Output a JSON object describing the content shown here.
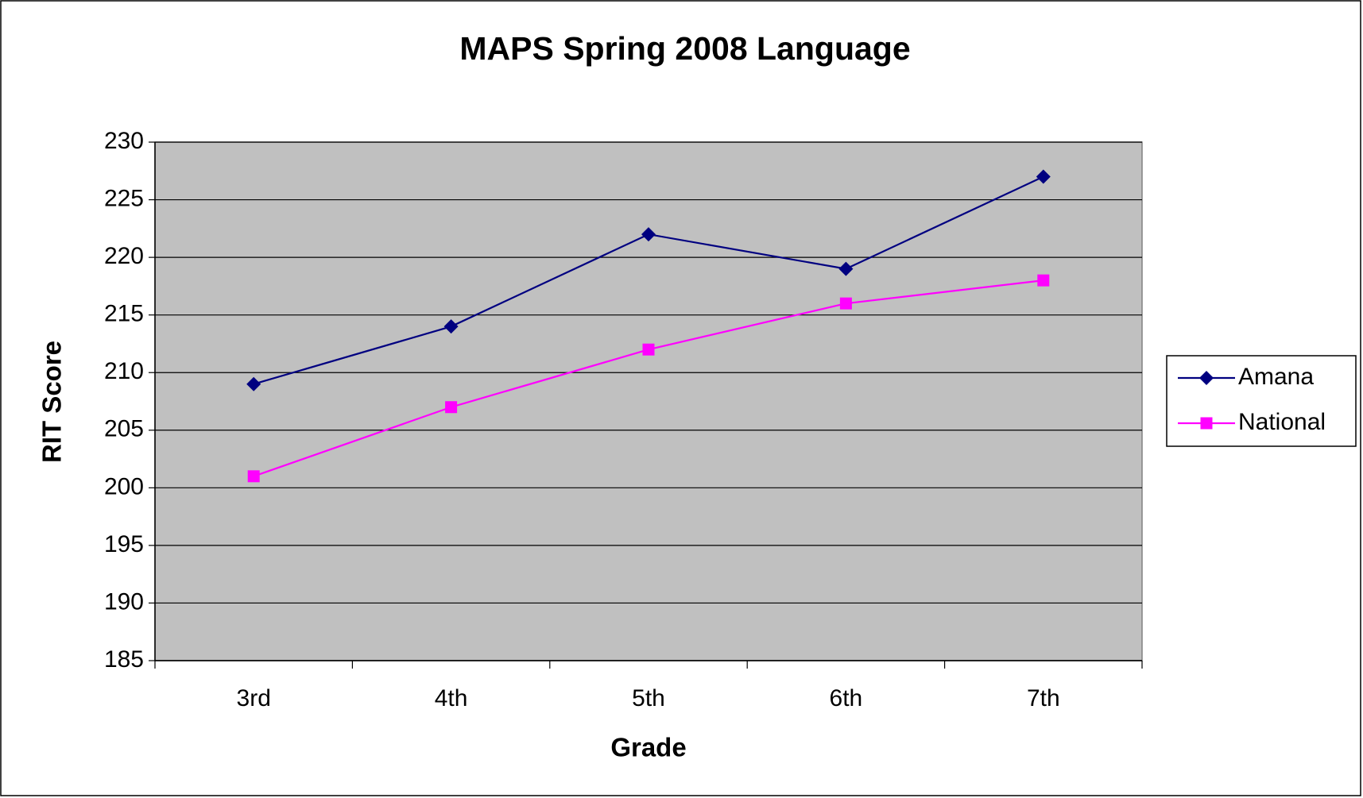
{
  "chart_data": {
    "type": "line",
    "title": "MAPS Spring 2008 Language",
    "x_label": "Grade",
    "y_label": "RIT Score",
    "categories": [
      "3rd",
      "4th",
      "5th",
      "6th",
      "7th"
    ],
    "series": [
      {
        "name": "Amana",
        "color": "#000080",
        "marker": "diamond",
        "values": [
          209,
          214,
          222,
          219,
          227
        ]
      },
      {
        "name": "National",
        "color": "#ff00ff",
        "marker": "square",
        "values": [
          201,
          207,
          212,
          216,
          218
        ]
      }
    ],
    "ylim": [
      185,
      230
    ],
    "yticks": [
      185,
      190,
      195,
      200,
      205,
      210,
      215,
      220,
      225,
      230
    ],
    "grid": true,
    "plot_background": "#c0c0c0",
    "legend": "right"
  }
}
